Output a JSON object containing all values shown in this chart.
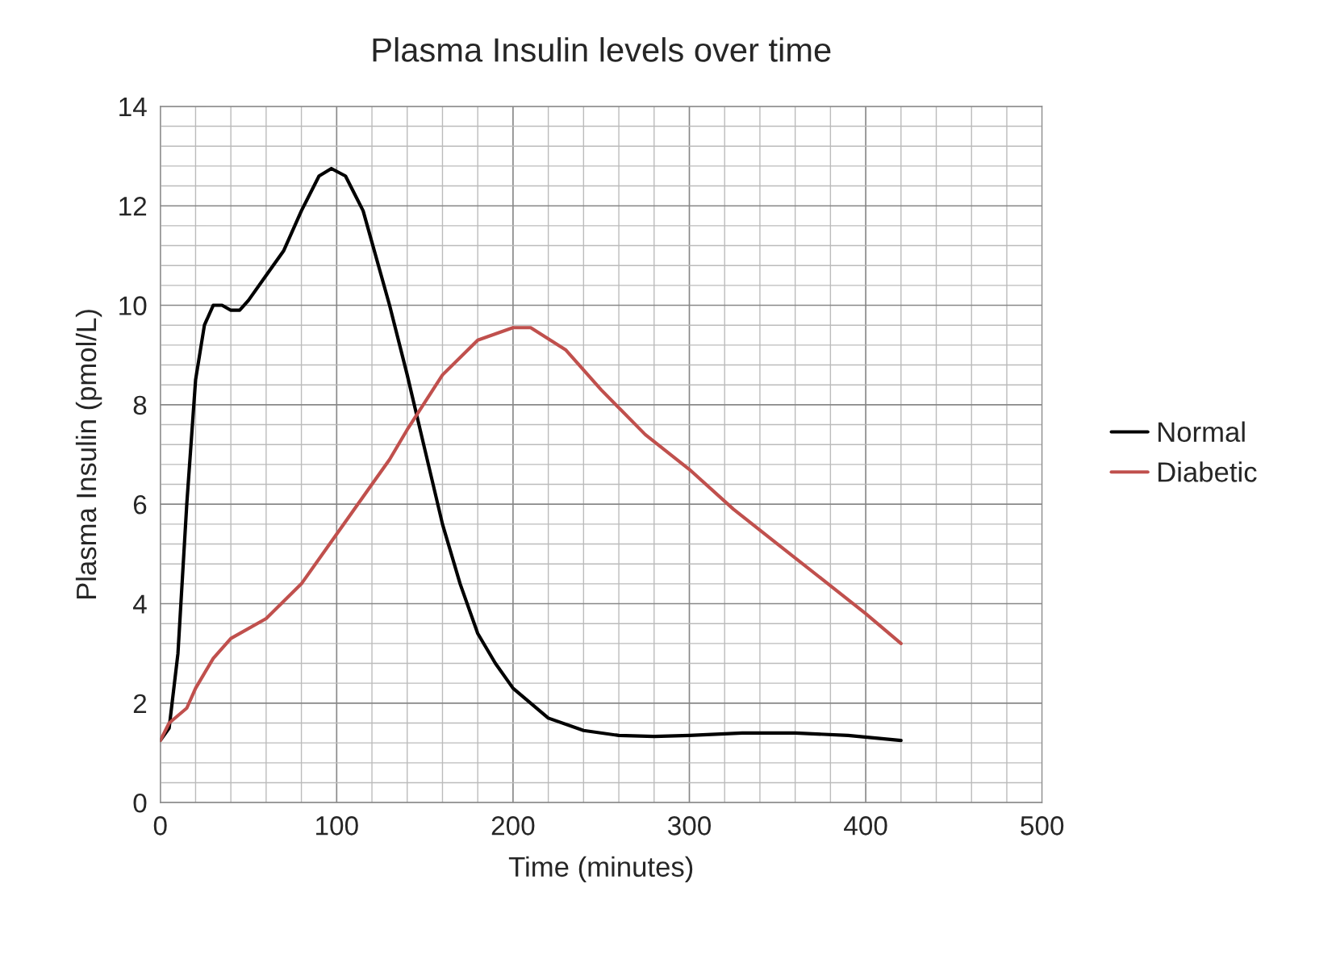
{
  "chart_data": {
    "type": "line",
    "title": "Plasma Insulin levels over time",
    "xlabel": "Time (minutes)",
    "ylabel": "Plasma Insulin (pmol/L)",
    "xlim": [
      0,
      500
    ],
    "xticks": [
      0,
      100,
      200,
      300,
      400,
      500
    ],
    "ylim": [
      0,
      14
    ],
    "yticks": [
      0,
      2,
      4,
      6,
      8,
      10,
      12,
      14
    ],
    "grid": true,
    "legend": "right",
    "marker": "none",
    "line_style": "solid",
    "series": [
      {
        "name": "Normal",
        "color": "#000000",
        "x": [
          0,
          5,
          10,
          15,
          20,
          25,
          30,
          35,
          40,
          45,
          50,
          60,
          70,
          80,
          90,
          97,
          105,
          115,
          130,
          140,
          150,
          160,
          170,
          180,
          190,
          200,
          220,
          240,
          260,
          280,
          300,
          330,
          360,
          390,
          420
        ],
        "values": [
          1.25,
          1.5,
          3,
          6,
          8.5,
          9.6,
          10,
          10,
          9.9,
          9.9,
          10.1,
          10.6,
          11.1,
          11.9,
          12.6,
          12.75,
          12.6,
          11.9,
          10,
          8.6,
          7.1,
          5.6,
          4.4,
          3.4,
          2.8,
          2.3,
          1.7,
          1.45,
          1.35,
          1.33,
          1.35,
          1.4,
          1.4,
          1.35,
          1.25
        ]
      },
      {
        "name": "Diabetic",
        "color": "#c0504d",
        "x": [
          0,
          5,
          10,
          15,
          20,
          30,
          40,
          60,
          80,
          100,
          120,
          130,
          140,
          160,
          180,
          200,
          210,
          230,
          250,
          275,
          300,
          325,
          350,
          375,
          400,
          420
        ],
        "values": [
          1.25,
          1.6,
          1.75,
          1.9,
          2.3,
          2.9,
          3.3,
          3.7,
          4.4,
          5.4,
          6.4,
          6.9,
          7.5,
          8.6,
          9.3,
          9.55,
          9.55,
          9.1,
          8.3,
          7.4,
          6.7,
          5.9,
          5.2,
          4.5,
          3.8,
          3.2
        ]
      }
    ]
  }
}
